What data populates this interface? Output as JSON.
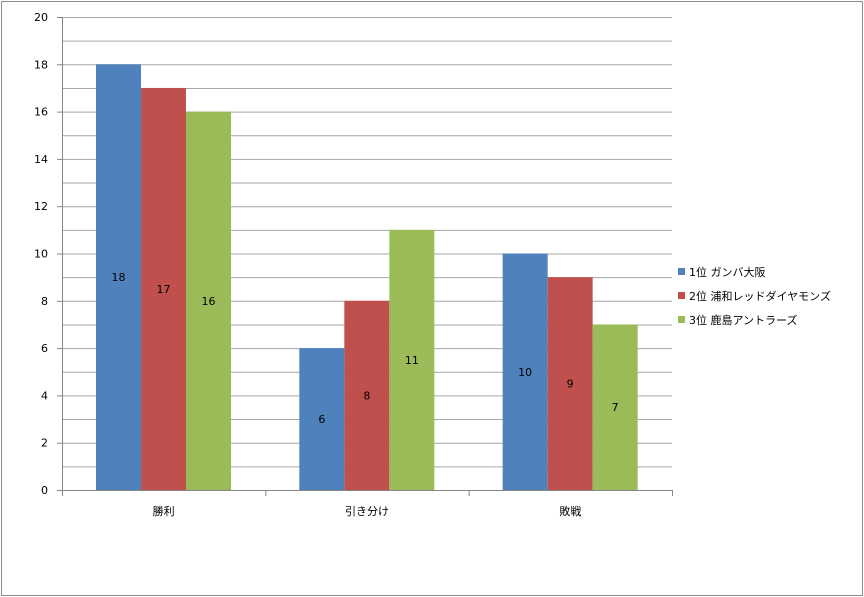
{
  "chart_data": {
    "type": "bar",
    "categories": [
      "勝利",
      "引き分け",
      "敗戦"
    ],
    "series": [
      {
        "name": "1位 ガンバ大阪",
        "color": "#4f81bd",
        "values": [
          18,
          6,
          10
        ]
      },
      {
        "name": "2位 浦和レッドダイヤモンズ",
        "color": "#c0504d",
        "values": [
          17,
          8,
          9
        ]
      },
      {
        "name": "3位 鹿島アントラーズ",
        "color": "#9bbb59",
        "values": [
          16,
          11,
          7
        ]
      }
    ],
    "title": "",
    "xlabel": "",
    "ylabel": "",
    "ylim": [
      0,
      20
    ],
    "yticks": [
      0,
      2,
      4,
      6,
      8,
      10,
      12,
      14,
      16,
      18,
      20
    ],
    "grid": true,
    "minor_grid_step": 1,
    "data_labels": true,
    "legend": "right"
  }
}
